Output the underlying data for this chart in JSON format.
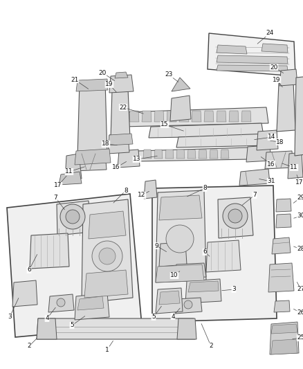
{
  "bg_color": "#ffffff",
  "fig_width": 4.38,
  "fig_height": 5.33,
  "dpi": 100,
  "label_fontsize": 6.5,
  "label_color": "#111111",
  "part_fc": "#d8d8d8",
  "part_ec": "#555555",
  "panel_fc": "#f0f0f0",
  "panel_ec": "#444444",
  "line_color": "#777777",
  "callout_color": "#444444"
}
